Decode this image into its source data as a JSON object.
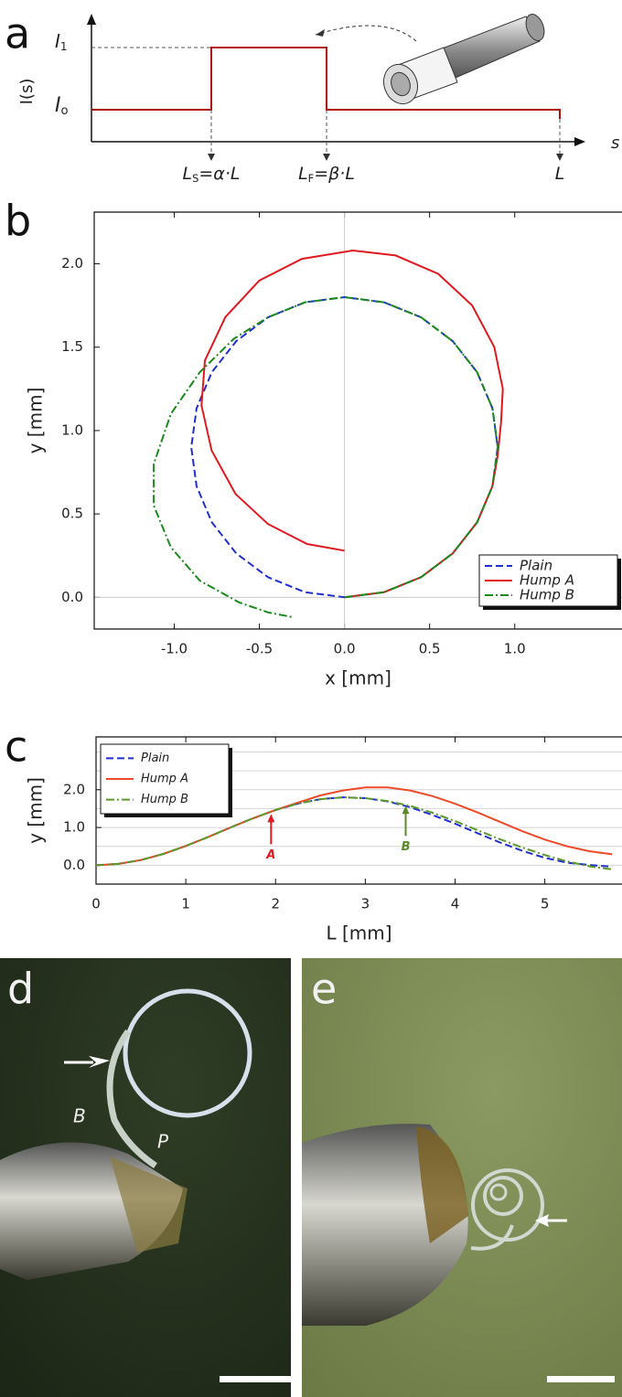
{
  "panel_labels": [
    "a",
    "b",
    "c",
    "d",
    "e"
  ],
  "photo_labels": [
    "B",
    "P"
  ],
  "chart_data": [
    {
      "type": "step",
      "ylabel": "I(s)",
      "xlabel": "s",
      "levels": [
        {
          "base": "I",
          "sub": "1"
        },
        {
          "base": "I",
          "sub": "o"
        }
      ],
      "markers": [
        {
          "base": "L",
          "sub": "S",
          "rest": "=α·L"
        },
        {
          "base": "L",
          "sub": "F",
          "rest": "=β·L"
        },
        {
          "base": "L"
        }
      ]
    },
    {
      "type": "line",
      "xlabel": "x [mm]",
      "ylabel": "y [mm]",
      "xlim": [
        -1.47,
        1.63
      ],
      "ylim": [
        -0.19,
        2.31
      ],
      "xticks": [
        {
          "value": -1,
          "label": "-1.0"
        },
        {
          "value": -0.5,
          "label": "-0.5"
        },
        {
          "value": 0,
          "label": "0.0"
        },
        {
          "value": 0.5,
          "label": "0.5"
        },
        {
          "value": 1,
          "label": "1.0"
        }
      ],
      "yticks": [
        {
          "value": 0,
          "label": "0.0"
        },
        {
          "value": 0.5,
          "label": "0.5"
        },
        {
          "value": 1,
          "label": "1.0"
        },
        {
          "value": 1.5,
          "label": "1.5"
        },
        {
          "value": 2,
          "label": "2.0"
        }
      ],
      "zero_lines": true,
      "legend": "lower right",
      "series": [
        {
          "name": "Plain",
          "color": "#1f2fd0",
          "line_style": "dashed",
          "x": [
            0,
            0.233,
            0.45,
            0.636,
            0.779,
            0.869,
            0.9,
            0.869,
            0.779,
            0.636,
            0.45,
            0.233,
            0,
            -0.233,
            -0.45,
            -0.636,
            -0.779,
            -0.869,
            -0.9,
            -0.869,
            -0.779,
            -0.636,
            -0.45,
            -0.233,
            0
          ],
          "values": [
            0,
            0.031,
            0.121,
            0.264,
            0.45,
            0.667,
            0.9,
            1.133,
            1.35,
            1.536,
            1.679,
            1.769,
            1.8,
            1.769,
            1.679,
            1.536,
            1.35,
            1.133,
            0.9,
            0.667,
            0.45,
            0.264,
            0.121,
            0.031,
            0
          ]
        },
        {
          "name": "Hump A",
          "color": "#e0191f",
          "line_style": "solid",
          "x": [
            0,
            0.233,
            0.45,
            0.636,
            0.779,
            0.869,
            0.9,
            0.92,
            0.93,
            0.88,
            0.75,
            0.55,
            0.3,
            0.05,
            -0.25,
            -0.5,
            -0.7,
            -0.82,
            -0.84,
            -0.78,
            -0.64,
            -0.45,
            -0.22,
            0
          ],
          "values": [
            0,
            0.031,
            0.121,
            0.264,
            0.45,
            0.667,
            0.85,
            1.05,
            1.25,
            1.5,
            1.75,
            1.94,
            2.05,
            2.08,
            2.03,
            1.9,
            1.68,
            1.42,
            1.15,
            0.88,
            0.62,
            0.44,
            0.32,
            0.28
          ]
        },
        {
          "name": "Hump B",
          "color": "#1a8a1a",
          "line_style": "dashdot",
          "x": [
            0,
            0.233,
            0.45,
            0.636,
            0.779,
            0.869,
            0.9,
            0.869,
            0.779,
            0.636,
            0.45,
            0.233,
            0,
            -0.233,
            -0.45,
            -0.65,
            -0.85,
            -1.02,
            -1.12,
            -1.12,
            -1.02,
            -0.85,
            -0.62,
            -0.45,
            -0.3
          ],
          "values": [
            0,
            0.031,
            0.121,
            0.264,
            0.45,
            0.667,
            0.9,
            1.133,
            1.35,
            1.536,
            1.679,
            1.769,
            1.8,
            1.769,
            1.679,
            1.55,
            1.35,
            1.1,
            0.8,
            0.55,
            0.3,
            0.1,
            -0.03,
            -0.09,
            -0.12
          ]
        }
      ]
    },
    {
      "type": "line",
      "xlabel": "L [mm]",
      "ylabel": "y [mm]",
      "xlim": [
        0,
        5.86
      ],
      "ylim": [
        -0.5,
        3.4
      ],
      "xticks": [
        0,
        1,
        2,
        3,
        4,
        5
      ],
      "yticks": [
        {
          "value": 0,
          "label": "0.0"
        },
        {
          "value": 1,
          "label": "1.0"
        },
        {
          "value": 2,
          "label": "2.0"
        }
      ],
      "ygrid": [
        0,
        0.5,
        1,
        1.5,
        2,
        2.5,
        3
      ],
      "legend": "upper left",
      "x": [
        0,
        0.25,
        0.5,
        0.75,
        1,
        1.25,
        1.5,
        1.75,
        2,
        2.25,
        2.5,
        2.75,
        3,
        3.25,
        3.5,
        3.75,
        4,
        4.25,
        4.5,
        4.75,
        5,
        5.25,
        5.5,
        5.75
      ],
      "series": [
        {
          "name": "Plain",
          "color": "#1f2fd0",
          "line_style": "dashed",
          "values": [
            0,
            0.035,
            0.138,
            0.3,
            0.509,
            0.749,
            1.001,
            1.244,
            1.461,
            1.635,
            1.751,
            1.799,
            1.777,
            1.689,
            1.536,
            1.328,
            1.1,
            0.85,
            0.603,
            0.382,
            0.196,
            0.068,
            0.006,
            -0.04
          ]
        },
        {
          "name": "Hump A",
          "color": "#ee4a2a",
          "line_style": "solid",
          "values": [
            0,
            0.035,
            0.138,
            0.3,
            0.509,
            0.749,
            1.001,
            1.244,
            1.461,
            1.66,
            1.85,
            1.98,
            2.06,
            2.06,
            1.98,
            1.83,
            1.63,
            1.4,
            1.15,
            0.9,
            0.68,
            0.5,
            0.37,
            0.29
          ]
        },
        {
          "name": "Hump B",
          "color": "#5a9a2a",
          "line_style": "dashdot",
          "values": [
            0,
            0.035,
            0.138,
            0.3,
            0.509,
            0.749,
            1.001,
            1.244,
            1.461,
            1.635,
            1.751,
            1.799,
            1.777,
            1.7,
            1.57,
            1.39,
            1.17,
            0.93,
            0.69,
            0.47,
            0.27,
            0.1,
            -0.03,
            -0.11
          ]
        }
      ],
      "annotations": [
        {
          "text": "A",
          "x": 1.95,
          "y": 1.38,
          "color": "#e0191f"
        },
        {
          "text": "B",
          "x": 3.45,
          "y": 1.6,
          "color": "#5a8a2a"
        }
      ]
    }
  ]
}
